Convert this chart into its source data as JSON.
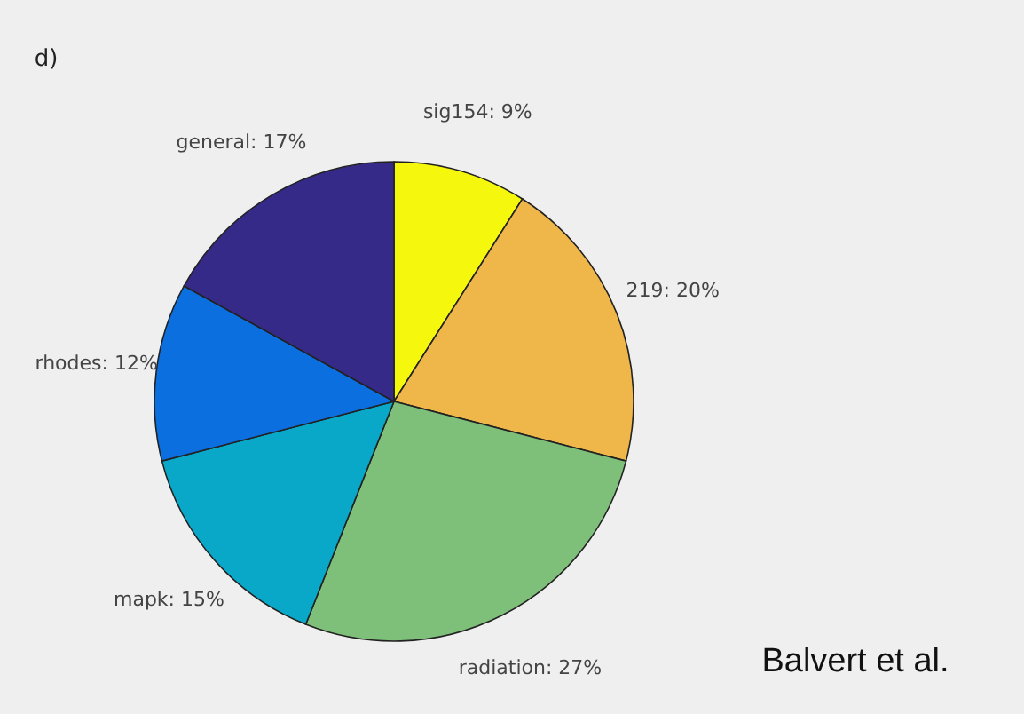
{
  "chart_data": {
    "type": "pie",
    "categories": [
      "sig154",
      "219",
      "radiation",
      "mapk",
      "rhodes",
      "general"
    ],
    "values": [
      9,
      20,
      27,
      15,
      12,
      17
    ],
    "colors": [
      "#f5f80c",
      "#efb64a",
      "#7ec07a",
      "#0aa8c8",
      "#0c6fdf",
      "#352a87"
    ],
    "value_labels": [
      "9%",
      "20%",
      "27%",
      "15%",
      "12%",
      "17%"
    ],
    "annotations": [
      "d)",
      "Balvert et al."
    ]
  }
}
